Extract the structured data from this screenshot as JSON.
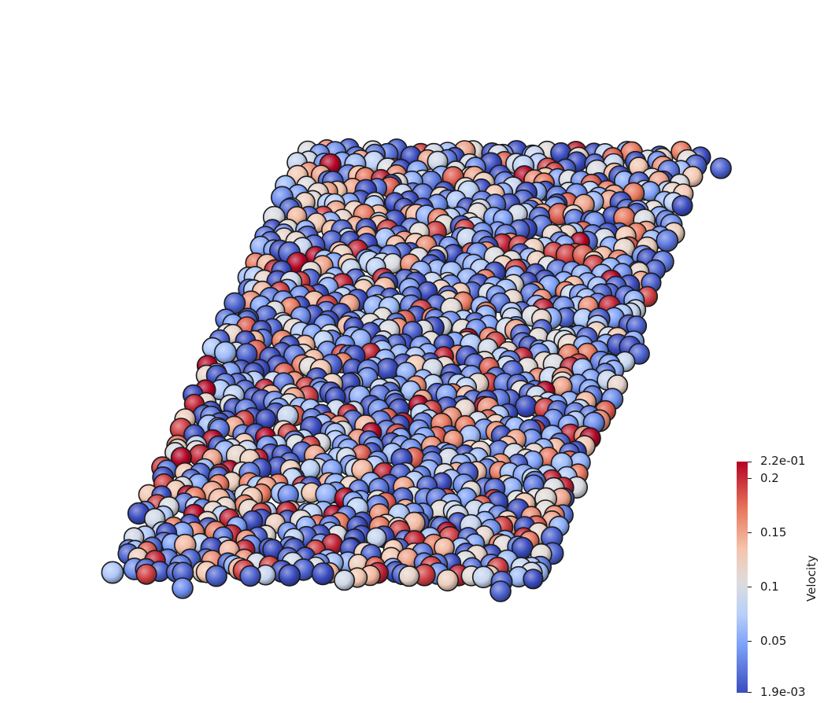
{
  "scene": {
    "description_icon": "particle-spheres",
    "background_color": "#ffffff",
    "colormap": [
      "#3b4cc0",
      "#7b9ff9",
      "#b9d0f9",
      "#dddcdc",
      "#f4c5ad",
      "#e7745b",
      "#b40426"
    ]
  },
  "scalar_bar": {
    "title": "Velocity",
    "max_label": "2.2e-01",
    "min_label": "1.9e-03",
    "ticks": [
      {
        "label": "0.2",
        "value": 0.2
      },
      {
        "label": "0.15",
        "value": 0.15
      },
      {
        "label": "0.1",
        "value": 0.1
      },
      {
        "label": "0.05",
        "value": 0.05
      }
    ],
    "range": [
      0.0019,
      0.22
    ]
  }
}
